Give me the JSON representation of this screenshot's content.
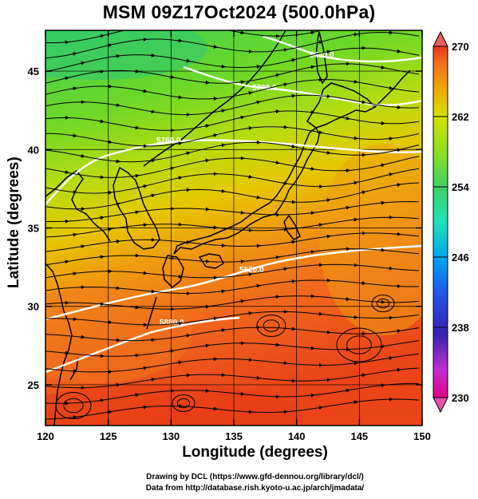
{
  "title": "MSM 09Z17Oct2024 (500.0hPa)",
  "xlabel": "Longitude (degrees)",
  "ylabel": "Latitude  (degrees)",
  "credit_line1": "Drawing by DCL (https://www.gfd-dennou.org/library/dcl/)",
  "credit_line2": "Data from http://database.rish.kyoto-u.ac.jp/arch/jmadata/",
  "map": {
    "lon_range": [
      120,
      150
    ],
    "lat_range": [
      22.4,
      47.6
    ],
    "x_ticks": [
      "120",
      "125",
      "130",
      "135",
      "140",
      "145",
      "150"
    ],
    "y_ticks": [
      "25",
      "30",
      "35",
      "40",
      "45"
    ],
    "grid": true
  },
  "colorbar": {
    "min": 230,
    "max": 270,
    "tick_labels": [
      "270",
      "262",
      "254",
      "246",
      "238",
      "230"
    ],
    "colors": [
      "#e00070",
      "#e030d0",
      "#4030b0",
      "#2050e0",
      "#00a0f0",
      "#20e0c0",
      "#40d060",
      "#80e020",
      "#d8e000",
      "#f0a000",
      "#f06020",
      "#e83a1a"
    ]
  },
  "contours": [
    {
      "label": "5640.0"
    },
    {
      "label": "5700.0"
    },
    {
      "label": "5760.0"
    },
    {
      "label": "5820.0"
    },
    {
      "label": "5880.0"
    }
  ]
}
